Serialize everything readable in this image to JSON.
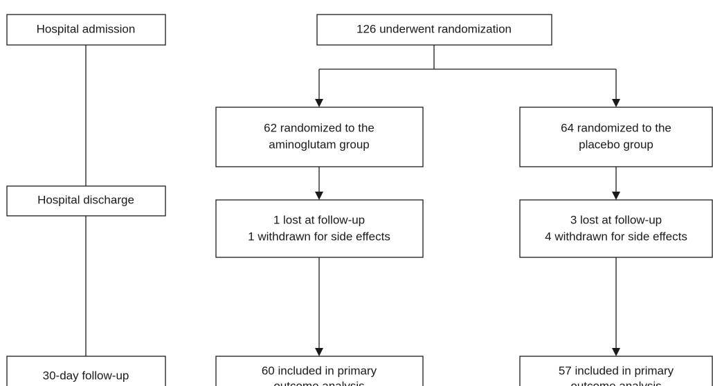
{
  "timeline": {
    "admission": "Hospital admission",
    "discharge": "Hospital discharge",
    "follow_up": "30-day follow-up"
  },
  "randomization": "126 underwent randomization",
  "arms": [
    {
      "allocation": [
        "62 randomized to the",
        "aminoglutam group"
      ],
      "exclusions": [
        "1 lost at follow-up",
        "1 withdrawn for side effects"
      ],
      "analysis": [
        "60 included in primary",
        "outcome analysis"
      ]
    },
    {
      "allocation": [
        "64 randomized to the",
        "placebo group"
      ],
      "exclusions": [
        "3 lost at follow-up",
        "4 withdrawn for side effects"
      ],
      "analysis": [
        "57 included in primary",
        "outcome analysis"
      ]
    }
  ]
}
